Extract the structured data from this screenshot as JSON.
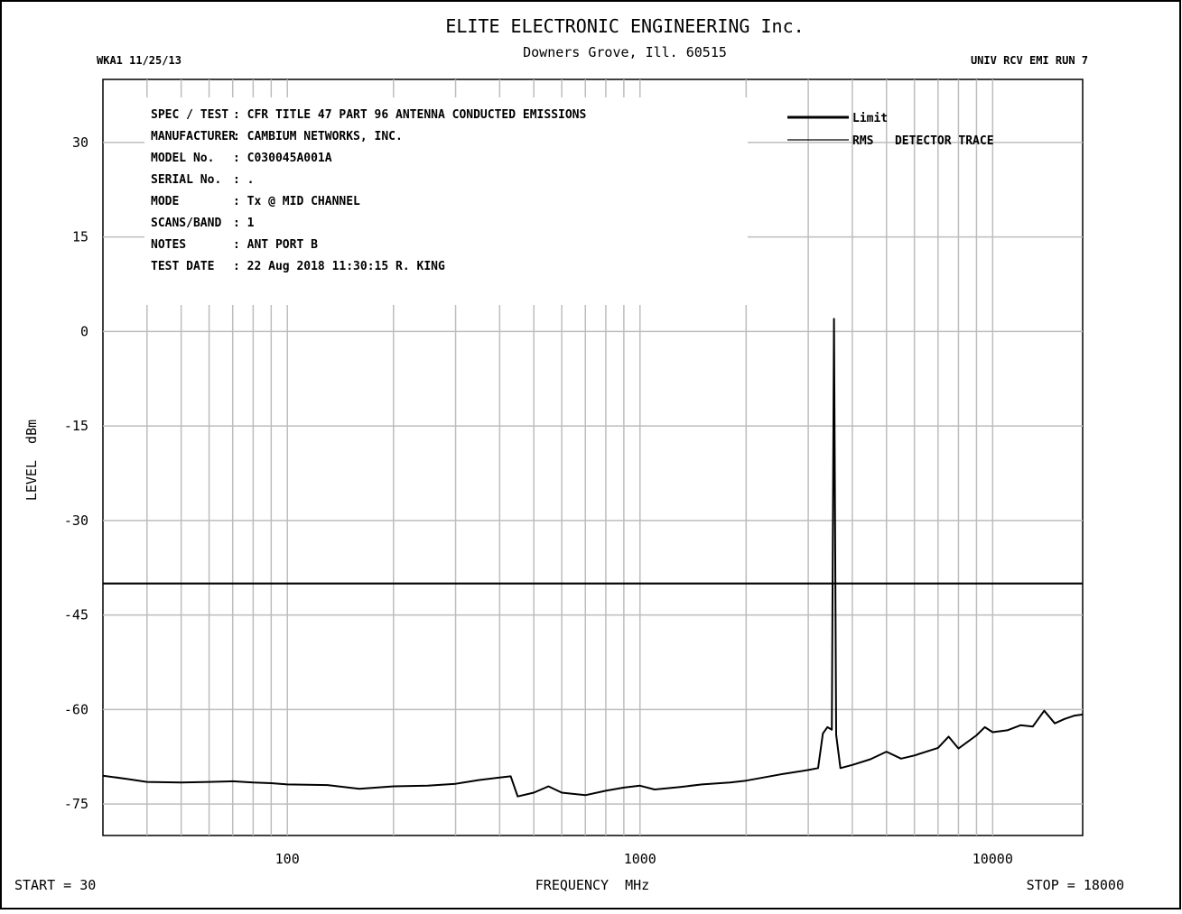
{
  "header": {
    "company": "ELITE ELECTRONIC ENGINEERING Inc.",
    "location": "Downers Grove, Ill. 60515",
    "left_code": "WKA1  11/25/13",
    "right_code": "UNIV RCV EMI  RUN 7"
  },
  "info": {
    "rows": [
      {
        "key": "SPEC / TEST",
        "value": ": CFR TITLE 47 PART 96 ANTENNA CONDUCTED EMISSIONS"
      },
      {
        "key": "MANUFACTURER",
        "value": ": CAMBIUM NETWORKS, INC."
      },
      {
        "key": "MODEL No.",
        "value": ": C030045A001A"
      },
      {
        "key": "SERIAL No.",
        "value": ": ."
      },
      {
        "key": "MODE",
        "value": ": Tx @ MID CHANNEL"
      },
      {
        "key": "SCANS/BAND",
        "value": ": 1"
      },
      {
        "key": "NOTES",
        "value": ": ANT PORT B"
      },
      {
        "key": "TEST DATE",
        "value": ": 22 Aug 2018 11:30:15  R. KING"
      }
    ]
  },
  "footer": {
    "start": "START = 30",
    "stop": "STOP = 18000"
  },
  "colors": {
    "line": "#000000",
    "grid": "#bdbdbd",
    "background": "#ffffff"
  },
  "chart_data": {
    "type": "line",
    "title": "",
    "xlabel": "FREQUENCY  MHz",
    "ylabel": "LEVEL  dBm",
    "xscale": "log",
    "xlim": [
      30,
      18000
    ],
    "ylim": [
      -80,
      40
    ],
    "yticks": [
      30,
      15,
      0,
      -15,
      -30,
      -45,
      -60,
      -75
    ],
    "xtick_labels": [
      "100",
      "1000",
      "10000"
    ],
    "xtick_values": [
      100,
      1000,
      10000
    ],
    "grid": true,
    "legend": "top-right",
    "series": [
      {
        "name": "Limit",
        "style": "thick",
        "points": [
          [
            30,
            -40
          ],
          [
            18000,
            -40
          ]
        ]
      },
      {
        "name": "RMS   DETECTOR TRACE",
        "style": "thin",
        "points": [
          [
            30,
            -70.5
          ],
          [
            35,
            -71
          ],
          [
            40,
            -71.5
          ],
          [
            50,
            -71.6
          ],
          [
            60,
            -71.5
          ],
          [
            70,
            -71.4
          ],
          [
            80,
            -71.6
          ],
          [
            90,
            -71.7
          ],
          [
            100,
            -71.9
          ],
          [
            130,
            -72
          ],
          [
            160,
            -72.6
          ],
          [
            200,
            -72.2
          ],
          [
            250,
            -72.1
          ],
          [
            300,
            -71.8
          ],
          [
            350,
            -71.2
          ],
          [
            400,
            -70.8
          ],
          [
            430,
            -70.6
          ],
          [
            450,
            -73.8
          ],
          [
            500,
            -73.2
          ],
          [
            550,
            -72.2
          ],
          [
            600,
            -73.2
          ],
          [
            700,
            -73.6
          ],
          [
            800,
            -72.9
          ],
          [
            900,
            -72.4
          ],
          [
            1000,
            -72.1
          ],
          [
            1100,
            -72.7
          ],
          [
            1300,
            -72.3
          ],
          [
            1500,
            -71.9
          ],
          [
            1800,
            -71.6
          ],
          [
            2000,
            -71.3
          ],
          [
            2500,
            -70.3
          ],
          [
            3000,
            -69.6
          ],
          [
            3200,
            -69.3
          ],
          [
            3300,
            -63.8
          ],
          [
            3400,
            -62.8
          ],
          [
            3500,
            -63.2
          ],
          [
            3550,
            2
          ],
          [
            3600,
            -64.0
          ],
          [
            3700,
            -69.3
          ],
          [
            4000,
            -68.8
          ],
          [
            4500,
            -67.9
          ],
          [
            5000,
            -66.7
          ],
          [
            5500,
            -67.8
          ],
          [
            6000,
            -67.3
          ],
          [
            7000,
            -66.1
          ],
          [
            7500,
            -64.3
          ],
          [
            8000,
            -66.2
          ],
          [
            9000,
            -64.1
          ],
          [
            9500,
            -62.8
          ],
          [
            10000,
            -63.6
          ],
          [
            11000,
            -63.3
          ],
          [
            12000,
            -62.5
          ],
          [
            13000,
            -62.7
          ],
          [
            14000,
            -60.2
          ],
          [
            15000,
            -62.2
          ],
          [
            16000,
            -61.5
          ],
          [
            17000,
            -61.0
          ],
          [
            18000,
            -60.8
          ]
        ]
      }
    ]
  }
}
